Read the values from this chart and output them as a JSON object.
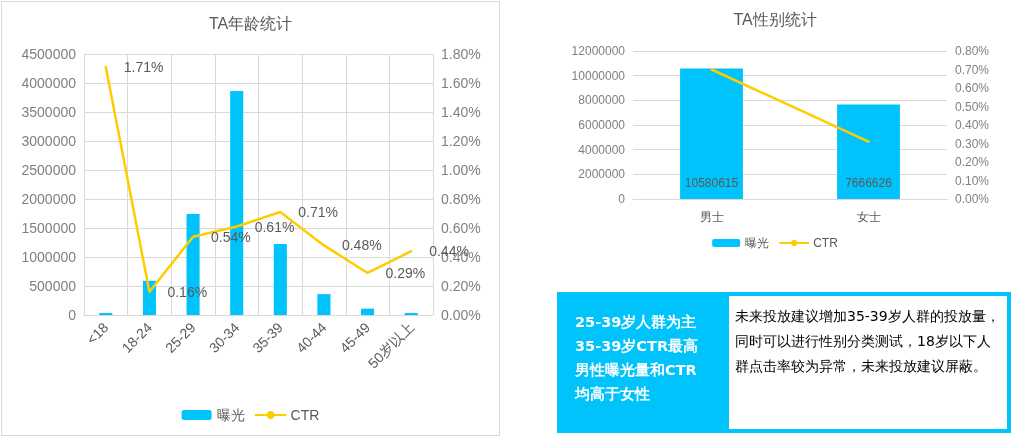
{
  "chart_data": [
    {
      "type": "bar",
      "title": "TA年龄统计",
      "categories": [
        "<18",
        "18-24",
        "25-29",
        "30-34",
        "35-39",
        "40-44",
        "45-49",
        "50岁以上"
      ],
      "series": [
        {
          "name": "曝光",
          "color": "#00c3fb",
          "values": [
            35000,
            590000,
            1740000,
            3860000,
            1225000,
            360000,
            110000,
            35000
          ]
        },
        {
          "name": "CTR",
          "type": "line",
          "axis": "y2",
          "color": "#ffcc00",
          "values": [
            1.71,
            0.16,
            0.54,
            0.61,
            0.71,
            0.48,
            0.29,
            0.44
          ],
          "value_labels": [
            "1.71%",
            "0.16%",
            "0.54%",
            "0.61%",
            "0.71%",
            "0.48%",
            "0.29%",
            "0.44%"
          ]
        }
      ],
      "ylim": [
        0,
        4500000
      ],
      "yticks": [
        0,
        500000,
        1000000,
        1500000,
        2000000,
        2500000,
        3000000,
        3500000,
        4000000,
        4500000
      ],
      "y2lim": [
        0,
        1.8
      ],
      "y2ticks": [
        {
          "value": 0,
          "label": "0.00%"
        },
        {
          "value": 0.2,
          "label": "0.20%"
        },
        {
          "value": 0.4,
          "label": "0.40%"
        },
        {
          "value": 0.6,
          "label": "0.60%"
        },
        {
          "value": 0.8,
          "label": "0.80%"
        },
        {
          "value": 1.0,
          "label": "1.00%"
        },
        {
          "value": 1.2,
          "label": "1.20%"
        },
        {
          "value": 1.4,
          "label": "1.40%"
        },
        {
          "value": 1.6,
          "label": "1.60%"
        },
        {
          "value": 1.8,
          "label": "1.80%"
        }
      ],
      "grid": true,
      "legend": "bottom",
      "marker": "none",
      "line_style": "solid"
    },
    {
      "type": "bar",
      "title": "TA性别统计",
      "categories": [
        "男士",
        "女士"
      ],
      "series": [
        {
          "name": "曝光",
          "color": "#00c3fb",
          "values": [
            10580615,
            7666626
          ],
          "value_labels": [
            "10580615",
            "7666626"
          ]
        },
        {
          "name": "CTR",
          "type": "line",
          "axis": "y2",
          "color": "#ffcc00",
          "values": [
            0.7,
            0.31
          ]
        }
      ],
      "ylim": [
        0,
        12000000
      ],
      "yticks": [
        0,
        2000000,
        4000000,
        6000000,
        8000000,
        10000000,
        12000000
      ],
      "y2lim": [
        0,
        0.8
      ],
      "y2ticks": [
        {
          "value": 0,
          "label": "0.00%"
        },
        {
          "value": 0.1,
          "label": "0.10%"
        },
        {
          "value": 0.2,
          "label": "0.20%"
        },
        {
          "value": 0.3,
          "label": "0.30%"
        },
        {
          "value": 0.4,
          "label": "0.40%"
        },
        {
          "value": 0.5,
          "label": "0.50%"
        },
        {
          "value": 0.6,
          "label": "0.60%"
        },
        {
          "value": 0.7,
          "label": "0.70%"
        },
        {
          "value": 0.8,
          "label": "0.80%"
        }
      ],
      "grid": "y",
      "legend": "bottom",
      "marker": "none",
      "line_style": "solid"
    },
    {
      "type": "other",
      "annotations": [
        "25-39岁人群为主",
        "35-39岁CTR最高",
        "男性曝光量和CTR",
        "均高于女性",
        "未来投放建议增加35-39岁人群的投放量，同时可以进行性别分类测试，18岁以下人群点击率较为异常，未来投放建议屏蔽。"
      ]
    }
  ]
}
